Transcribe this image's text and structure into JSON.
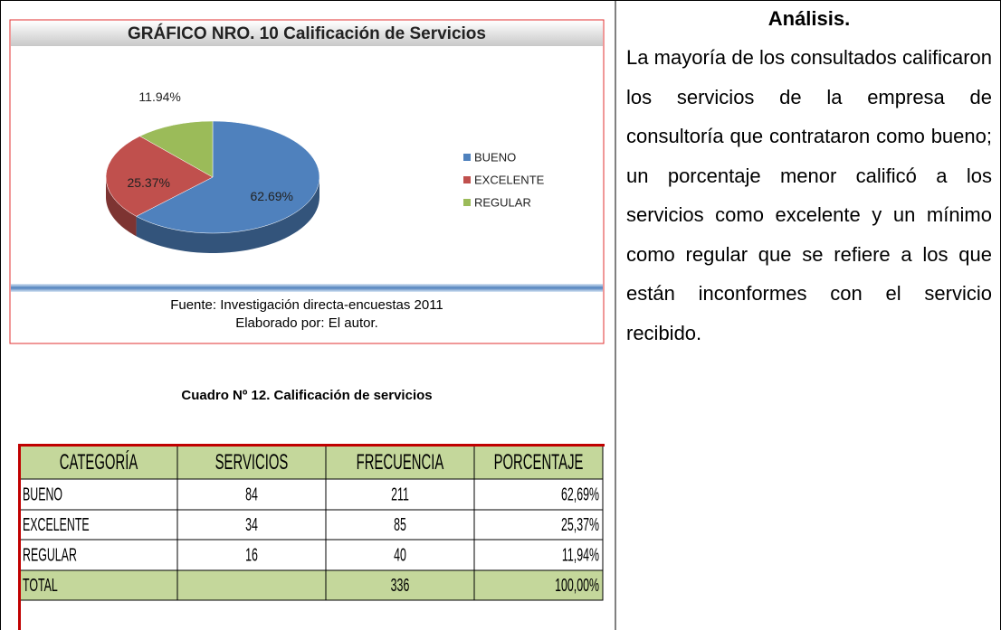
{
  "chart_data": {
    "type": "pie",
    "title": "GRÁFICO NRO. 10 Calificación de Servicios",
    "categories": [
      "BUENO",
      "EXCELENTE",
      "REGULAR"
    ],
    "values": [
      62.69,
      25.37,
      11.94
    ],
    "value_labels": [
      "62.69%",
      "25.37%",
      "11.94%"
    ],
    "colors": [
      "#4f81bd",
      "#c0504d",
      "#9bbb59"
    ],
    "legend": "right",
    "source": "Fuente: Investigación directa-encuestas 2011",
    "author": "Elaborado por: El autor."
  },
  "table": {
    "caption": "Cuadro Nº 12. Calificación de servicios",
    "header": [
      "CATEGORÍA",
      "SERVICIOS",
      "FRECUENCIA",
      "PORCENTAJE"
    ],
    "rows": [
      [
        "BUENO",
        84,
        211,
        "62,69%"
      ],
      [
        "EXCELENTE",
        34,
        85,
        "25,37%"
      ],
      [
        "REGULAR",
        16,
        40,
        "11,94%"
      ],
      [
        "TOTAL",
        null,
        336,
        "100,00%"
      ]
    ]
  },
  "analysis": {
    "title": "Análisis.",
    "text": "La mayoría de los consultados calificaron los servicios de la empresa de consultoría que contrataron como bueno; un porcentaje menor calificó a los servicios como excelente y un mínimo como regular que se refiere a los que están inconformes con el servicio recibido."
  }
}
